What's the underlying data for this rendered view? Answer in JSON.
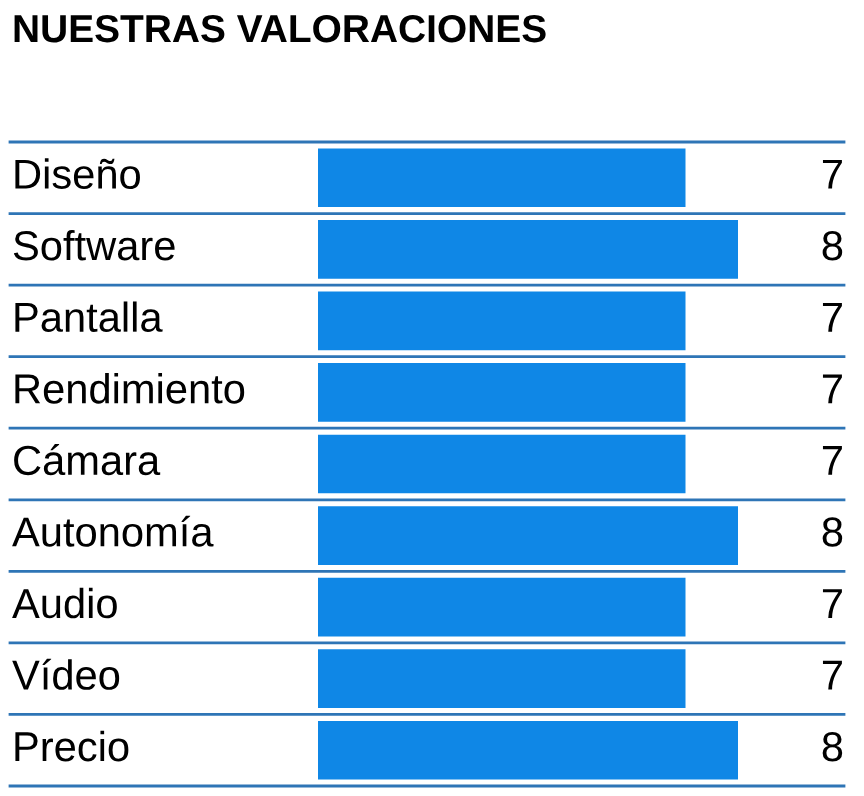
{
  "chart_data": {
    "type": "bar",
    "orientation": "horizontal",
    "title": "NUESTRAS VALORACIONES",
    "categories": [
      "Diseño",
      "Software",
      "Pantalla",
      "Rendimiento",
      "Cámara",
      "Autonomía",
      "Audio",
      "Vídeo",
      "Precio"
    ],
    "values": [
      7,
      8,
      7,
      7,
      7,
      8,
      7,
      7,
      8
    ],
    "color": "#0f87e6",
    "xlim": [
      0,
      8
    ],
    "data_labels": true
  }
}
